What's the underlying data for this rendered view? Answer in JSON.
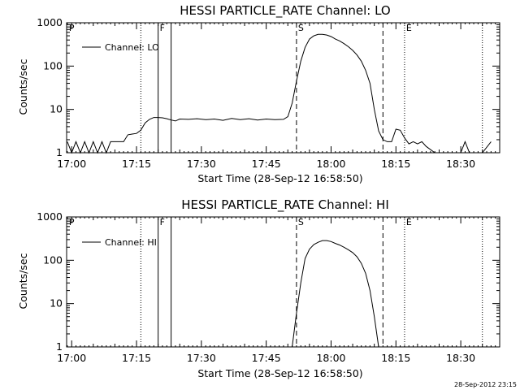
{
  "chart_data": [
    {
      "type": "line",
      "title": "HESSI PARTICLE_RATE Channel: LO",
      "xlabel": "Start Time (28-Sep-12 16:58:50)",
      "ylabel": "Counts/sec",
      "yscale": "log",
      "ylim": [
        1,
        1000
      ],
      "xlim": [
        "16:58:50",
        "18:39:00"
      ],
      "x_ticks": [
        "17:00",
        "17:15",
        "17:30",
        "17:45",
        "18:00",
        "18:15",
        "18:30"
      ],
      "y_ticks": [
        "1",
        "10",
        "100",
        "1000"
      ],
      "legend": {
        "position": "top-left",
        "entries": [
          "Channel: LO"
        ]
      },
      "series": [
        {
          "name": "Channel: LO",
          "x": [
            "16:59",
            "17:00",
            "17:01",
            "17:02",
            "17:03",
            "17:04",
            "17:05",
            "17:06",
            "17:07",
            "17:08",
            "17:09",
            "17:10",
            "17:11",
            "17:12",
            "17:13",
            "17:14",
            "17:15",
            "17:16",
            "17:17",
            "17:18",
            "17:19",
            "17:20",
            "17:21",
            "17:22",
            "17:23",
            "17:24",
            "17:25",
            "17:27",
            "17:29",
            "17:31",
            "17:33",
            "17:35",
            "17:37",
            "17:39",
            "17:41",
            "17:43",
            "17:45",
            "17:47",
            "17:49",
            "17:50",
            "17:51",
            "17:52",
            "17:53",
            "17:54",
            "17:55",
            "17:56",
            "17:57",
            "17:58",
            "17:59",
            "18:00",
            "18:01",
            "18:02",
            "18:03",
            "18:04",
            "18:05",
            "18:06",
            "18:07",
            "18:08",
            "18:09",
            "18:10",
            "18:11",
            "18:12",
            "18:13",
            "18:14",
            "18:15",
            "18:16",
            "18:17",
            "18:18",
            "18:19",
            "18:20",
            "18:21",
            "18:22",
            "18:24",
            "18:26",
            "18:28",
            "18:30",
            "18:31",
            "18:32",
            "18:34",
            "18:35",
            "18:37"
          ],
          "values": [
            1.8,
            1,
            1.8,
            1,
            1.8,
            1,
            1.8,
            1,
            1.8,
            1,
            1.8,
            1.8,
            1.8,
            1.8,
            2.6,
            2.7,
            2.8,
            3.3,
            4.9,
            5.9,
            6.5,
            6.5,
            6.4,
            6.1,
            5.7,
            5.4,
            6.0,
            5.9,
            6.1,
            5.8,
            6.0,
            5.6,
            6.2,
            5.8,
            6.1,
            5.7,
            6.0,
            5.8,
            5.9,
            6.8,
            14,
            45,
            130,
            270,
            420,
            500,
            540,
            540,
            520,
            480,
            420,
            380,
            330,
            280,
            230,
            180,
            130,
            80,
            40,
            10,
            3.2,
            2.0,
            1.8,
            1.8,
            3.5,
            3.3,
            2.2,
            1.6,
            1.8,
            1.6,
            1.8,
            1.4,
            1,
            1,
            1,
            1,
            1.8,
            1,
            1,
            1,
            1.8
          ]
        }
      ]
    },
    {
      "type": "line",
      "title": "HESSI PARTICLE_RATE Channel: HI",
      "xlabel": "Start Time (28-Sep-12 16:58:50)",
      "ylabel": "Counts/sec",
      "yscale": "log",
      "ylim": [
        1,
        1000
      ],
      "xlim": [
        "16:58:50",
        "18:39:00"
      ],
      "x_ticks": [
        "17:00",
        "17:15",
        "17:30",
        "17:45",
        "18:00",
        "18:15",
        "18:30"
      ],
      "y_ticks": [
        "1",
        "10",
        "100",
        "1000"
      ],
      "legend": {
        "position": "top-left",
        "entries": [
          "Channel: HI"
        ]
      },
      "series": [
        {
          "name": "Channel: HI",
          "x": [
            "17:51",
            "17:52",
            "17:53",
            "17:54",
            "17:55",
            "17:56",
            "17:57",
            "17:58",
            "17:59",
            "18:00",
            "18:01",
            "18:02",
            "18:03",
            "18:04",
            "18:05",
            "18:06",
            "18:07",
            "18:08",
            "18:09",
            "18:10",
            "18:11"
          ],
          "values": [
            1,
            6,
            30,
            110,
            180,
            230,
            260,
            285,
            285,
            270,
            245,
            225,
            200,
            175,
            150,
            120,
            85,
            50,
            20,
            5,
            1
          ]
        }
      ]
    }
  ],
  "markers": {
    "dotted_at": [
      "17:16",
      "18:17",
      "18:35"
    ],
    "solid_at": [
      "17:20",
      "17:23"
    ],
    "dashed_at": [
      "17:52",
      "18:12"
    ],
    "labels": [
      {
        "text": "F",
        "at": "17:20"
      },
      {
        "text": "S",
        "at": "17:52"
      },
      {
        "text": "E",
        "at": "18:17"
      },
      {
        "text": "P",
        "at": "16:59"
      }
    ]
  },
  "footer": {
    "timestamp": "28-Sep-2012 23:15"
  }
}
